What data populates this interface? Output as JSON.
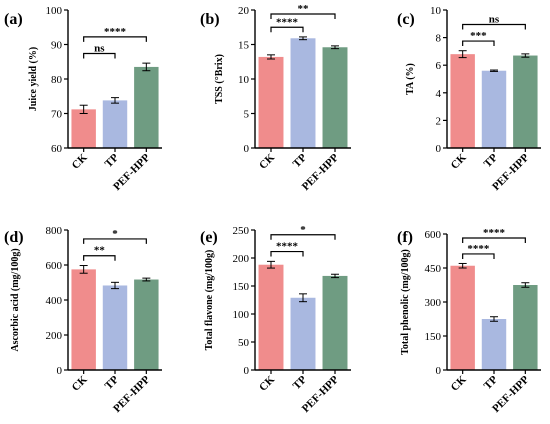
{
  "chart_data": [
    {
      "type": "bar",
      "panel_label": "(a)",
      "categories": [
        "CK",
        "TP",
        "PEF-HPP"
      ],
      "values": [
        71.2,
        73.8,
        83.5
      ],
      "errors": [
        1.2,
        0.8,
        1.1
      ],
      "ylabel": "Juice yield (%)",
      "ylim": [
        60,
        100
      ],
      "yticks": [
        60,
        70,
        80,
        90,
        100
      ],
      "significance": [
        {
          "from": 0,
          "to": 1,
          "label": "ns"
        },
        {
          "from": 0,
          "to": 2,
          "label": "****"
        }
      ]
    },
    {
      "type": "bar",
      "panel_label": "(b)",
      "categories": [
        "CK",
        "TP",
        "PEF-HPP"
      ],
      "values": [
        13.2,
        15.9,
        14.6
      ],
      "errors": [
        0.3,
        0.2,
        0.2
      ],
      "ylabel": "TSS (°Brix)",
      "ylim": [
        0,
        20
      ],
      "yticks": [
        0,
        5,
        10,
        15,
        20
      ],
      "significance": [
        {
          "from": 0,
          "to": 1,
          "label": "****"
        },
        {
          "from": 0,
          "to": 2,
          "label": "**"
        }
      ]
    },
    {
      "type": "bar",
      "panel_label": "(c)",
      "categories": [
        "CK",
        "TP",
        "PEF-HPP"
      ],
      "values": [
        6.8,
        5.6,
        6.7
      ],
      "errors": [
        0.25,
        0.05,
        0.12
      ],
      "ylabel": "TA (%)",
      "ylim": [
        0,
        10
      ],
      "yticks": [
        0,
        2,
        4,
        6,
        8,
        10
      ],
      "significance": [
        {
          "from": 0,
          "to": 1,
          "label": "***"
        },
        {
          "from": 0,
          "to": 2,
          "label": "ns"
        }
      ]
    },
    {
      "type": "bar",
      "panel_label": "(d)",
      "categories": [
        "CK",
        "TP",
        "PEF-HPP"
      ],
      "values": [
        575,
        483,
        517
      ],
      "errors": [
        22,
        18,
        8
      ],
      "ylabel": "Ascorbic acid (mg/100g)",
      "ylim": [
        0,
        800
      ],
      "yticks": [
        0,
        200,
        400,
        600,
        800
      ],
      "significance": [
        {
          "from": 0,
          "to": 1,
          "label": "**"
        },
        {
          "from": 0,
          "to": 2,
          "label": "*"
        }
      ]
    },
    {
      "type": "bar",
      "panel_label": "(e)",
      "categories": [
        "CK",
        "TP",
        "PEF-HPP"
      ],
      "values": [
        188,
        129,
        168
      ],
      "errors": [
        6,
        7,
        3
      ],
      "ylabel": "Total flavone (mg/100g)",
      "ylim": [
        0,
        250
      ],
      "yticks": [
        0,
        50,
        100,
        150,
        200,
        250
      ],
      "significance": [
        {
          "from": 0,
          "to": 1,
          "label": "****"
        },
        {
          "from": 0,
          "to": 2,
          "label": "*"
        }
      ]
    },
    {
      "type": "bar",
      "panel_label": "(f)",
      "categories": [
        "CK",
        "TP",
        "PEF-HPP"
      ],
      "values": [
        460,
        225,
        375
      ],
      "errors": [
        10,
        10,
        10
      ],
      "ylabel": "Total phenolic (mg/100g)",
      "ylim": [
        0,
        600
      ],
      "yticks": [
        0,
        150,
        300,
        450,
        600
      ],
      "significance": [
        {
          "from": 0,
          "to": 1,
          "label": "****"
        },
        {
          "from": 0,
          "to": 2,
          "label": "****"
        }
      ]
    }
  ],
  "colors": {
    "CK": "#f08c8c",
    "TP": "#a9b8e0",
    "PEF-HPP": "#6f9c82",
    "axis": "#000000"
  }
}
